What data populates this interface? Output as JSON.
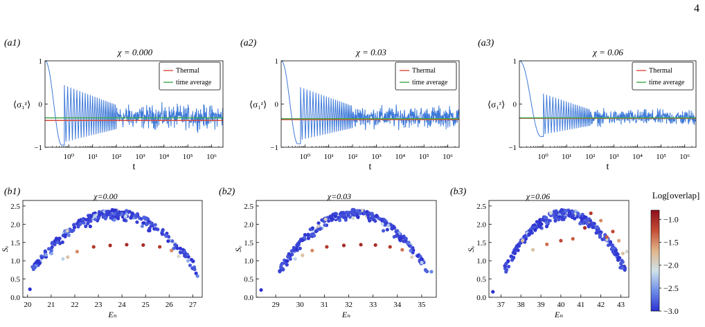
{
  "page_number": "4",
  "chart_data": [
    {
      "type": "line",
      "panel_label": "(a1)",
      "title": "χ = 0.000",
      "xlabel": "t",
      "ylabel": "⟨σ₁ᶻ⟩",
      "xscale": "log",
      "xlim": [
        0.1,
        3000000
      ],
      "ylim": [
        -1,
        1
      ],
      "xtick_labels": [
        "10⁰",
        "10¹",
        "10²",
        "10³",
        "10⁴",
        "10⁵",
        "10⁶"
      ],
      "ytick_labels": [
        "1",
        "0",
        "−1"
      ],
      "legend": [
        "Thermal",
        "time average"
      ],
      "legend_position": "top-right",
      "thermal": -0.38,
      "time_average": -0.32,
      "signal": {
        "dip_t": 0.5,
        "dip_y": -0.95,
        "peak_t": 8,
        "peak_y": 0.68,
        "band": [
          -0.65,
          0.05
        ]
      },
      "colors": {
        "signal": "#3c78d8",
        "thermal": "#d9483b",
        "time_average": "#3aa84a"
      }
    },
    {
      "type": "line",
      "panel_label": "(a2)",
      "title": "χ = 0.03",
      "xlabel": "t",
      "ylabel": "⟨σ₁ᶻ⟩",
      "xscale": "log",
      "xlim": [
        0.1,
        3000000
      ],
      "ylim": [
        -1,
        1
      ],
      "xtick_labels": [
        "10⁰",
        "10¹",
        "10²",
        "10³",
        "10⁴",
        "10⁵",
        "10⁶"
      ],
      "ytick_labels": [
        "1",
        "0",
        "−1"
      ],
      "legend": [
        "Thermal",
        "time average"
      ],
      "legend_position": "top-right",
      "thermal": -0.36,
      "time_average": -0.34,
      "signal": {
        "dip_t": 0.5,
        "dip_y": -0.92,
        "peak_t": 8,
        "peak_y": 0.63,
        "band": [
          -0.62,
          0.02
        ]
      },
      "colors": {
        "signal": "#3c78d8",
        "thermal": "#d9483b",
        "time_average": "#3aa84a"
      }
    },
    {
      "type": "line",
      "panel_label": "(a3)",
      "title": "χ = 0.06",
      "xlabel": "t",
      "ylabel": "⟨σ₁ᶻ⟩",
      "xscale": "log",
      "xlim": [
        0.1,
        3000000
      ],
      "ylim": [
        -1,
        1
      ],
      "xtick_labels": [
        "10⁰",
        "10¹",
        "10²",
        "10³",
        "10⁴",
        "10⁵",
        "10⁶"
      ],
      "ytick_labels": [
        "1",
        "0",
        "−1"
      ],
      "legend": [
        "Thermal",
        "time average"
      ],
      "legend_position": "top-right",
      "thermal": -0.33,
      "time_average": -0.32,
      "signal": {
        "dip_t": 0.8,
        "dip_y": -0.75,
        "peak_t": 12,
        "peak_y": 0.2,
        "band": [
          -0.55,
          -0.08
        ]
      },
      "colors": {
        "signal": "#3c78d8",
        "thermal": "#d9483b",
        "time_average": "#3aa84a"
      }
    },
    {
      "type": "scatter",
      "panel_label": "(b1)",
      "title": "χ=0.00",
      "xlabel": "Eₙ",
      "ylabel": "Sᵥ",
      "xlim": [
        19.8,
        27.4
      ],
      "ylim": [
        0,
        2.65
      ],
      "xtick_labels": [
        "20",
        "21",
        "22",
        "23",
        "24",
        "25",
        "26",
        "27"
      ],
      "ytick_labels": [
        "0.0",
        "0.5",
        "1.0",
        "1.5",
        "2.0",
        "2.5"
      ],
      "ytick_values": [
        0,
        0.5,
        1,
        1.5,
        2,
        2.5
      ],
      "xtick_values": [
        20,
        21,
        22,
        23,
        24,
        25,
        26,
        27
      ],
      "bulk_points": 260,
      "special_points": [
        [
          20.1,
          0.22,
          -3
        ],
        [
          21.5,
          1.05,
          -2.2
        ],
        [
          21.7,
          1.1,
          -1.8
        ],
        [
          22.1,
          1.25,
          -1.5
        ],
        [
          22.8,
          1.38,
          -1.1
        ],
        [
          23.5,
          1.42,
          -1
        ],
        [
          24.2,
          1.44,
          -1
        ],
        [
          24.9,
          1.43,
          -1
        ],
        [
          25.6,
          1.38,
          -1.1
        ],
        [
          26.1,
          1.28,
          -1.5
        ],
        [
          26.4,
          1.12,
          -2.0
        ],
        [
          27.2,
          0.58,
          -2.6
        ],
        [
          26.8,
          1.0,
          -2.4
        ]
      ]
    },
    {
      "type": "scatter",
      "panel_label": "(b2)",
      "title": "χ=0.03",
      "xlabel": "Eₙ",
      "ylabel": "Sᵥ",
      "xlim": [
        28.2,
        35.6
      ],
      "ylim": [
        0,
        2.65
      ],
      "xtick_labels": [
        "29",
        "30",
        "31",
        "32",
        "33",
        "34",
        "35"
      ],
      "ytick_labels": [
        "0.0",
        "0.5",
        "1.0",
        "1.5",
        "2.0",
        "2.5"
      ],
      "ytick_values": [
        0,
        0.5,
        1,
        1.5,
        2,
        2.5
      ],
      "xtick_values": [
        29,
        30,
        31,
        32,
        33,
        34,
        35
      ],
      "bulk_points": 260,
      "special_points": [
        [
          28.4,
          0.2,
          -3
        ],
        [
          29.8,
          1.05,
          -2.2
        ],
        [
          30.1,
          1.15,
          -1.8
        ],
        [
          30.5,
          1.28,
          -1.5
        ],
        [
          31.1,
          1.38,
          -1.1
        ],
        [
          31.8,
          1.42,
          -1
        ],
        [
          32.5,
          1.44,
          -1
        ],
        [
          33.1,
          1.43,
          -1
        ],
        [
          33.7,
          1.38,
          -1.1
        ],
        [
          34.2,
          1.3,
          -1.4
        ],
        [
          34.6,
          1.1,
          -1.9
        ],
        [
          35.4,
          0.7,
          -2.6
        ],
        [
          35.0,
          0.95,
          -2.2
        ]
      ]
    },
    {
      "type": "scatter",
      "panel_label": "(b3)",
      "title": "χ=0.06",
      "xlabel": "Eₙ",
      "ylabel": "Sᵥ",
      "xlim": [
        36.4,
        43.4
      ],
      "ylim": [
        0,
        2.65
      ],
      "xtick_labels": [
        "37",
        "38",
        "39",
        "40",
        "41",
        "42",
        "43"
      ],
      "ytick_labels": [
        "0.0",
        "0.5",
        "1.0",
        "1.5",
        "2.0",
        "2.5"
      ],
      "ytick_values": [
        0,
        0.5,
        1,
        1.5,
        2,
        2.5
      ],
      "xtick_values": [
        37,
        38,
        39,
        40,
        41,
        42,
        43
      ],
      "bulk_points": 280,
      "special_points": [
        [
          36.6,
          0.15,
          -3
        ],
        [
          38.6,
          1.3,
          -1.8
        ],
        [
          39.3,
          1.45,
          -1.4
        ],
        [
          40.0,
          1.55,
          -1.2
        ],
        [
          40.6,
          1.6,
          -1.3
        ],
        [
          41.2,
          1.9,
          -1.0
        ],
        [
          41.5,
          2.3,
          -1.1
        ],
        [
          42.0,
          2.1,
          -1.5
        ],
        [
          42.3,
          1.65,
          -1.3
        ],
        [
          42.6,
          1.8,
          -1.2
        ],
        [
          43.1,
          1.2,
          -1.8
        ],
        [
          43.3,
          1.25,
          -2.0
        ],
        [
          42.9,
          1.55,
          -1.6
        ]
      ]
    }
  ],
  "colorbar": {
    "title": "Log[overlap]",
    "range": [
      -3.0,
      -0.8
    ],
    "tick_labels": [
      "−1.0",
      "−1.5",
      "−2.0",
      "−2.5",
      "−3.0"
    ],
    "tick_values": [
      -1.0,
      -1.5,
      -2.0,
      -2.5,
      -3.0
    ],
    "colors": [
      "#2b2fd0",
      "#6e8ee8",
      "#cfe3ea",
      "#e0b489",
      "#c44d35",
      "#8e0f1c"
    ]
  }
}
